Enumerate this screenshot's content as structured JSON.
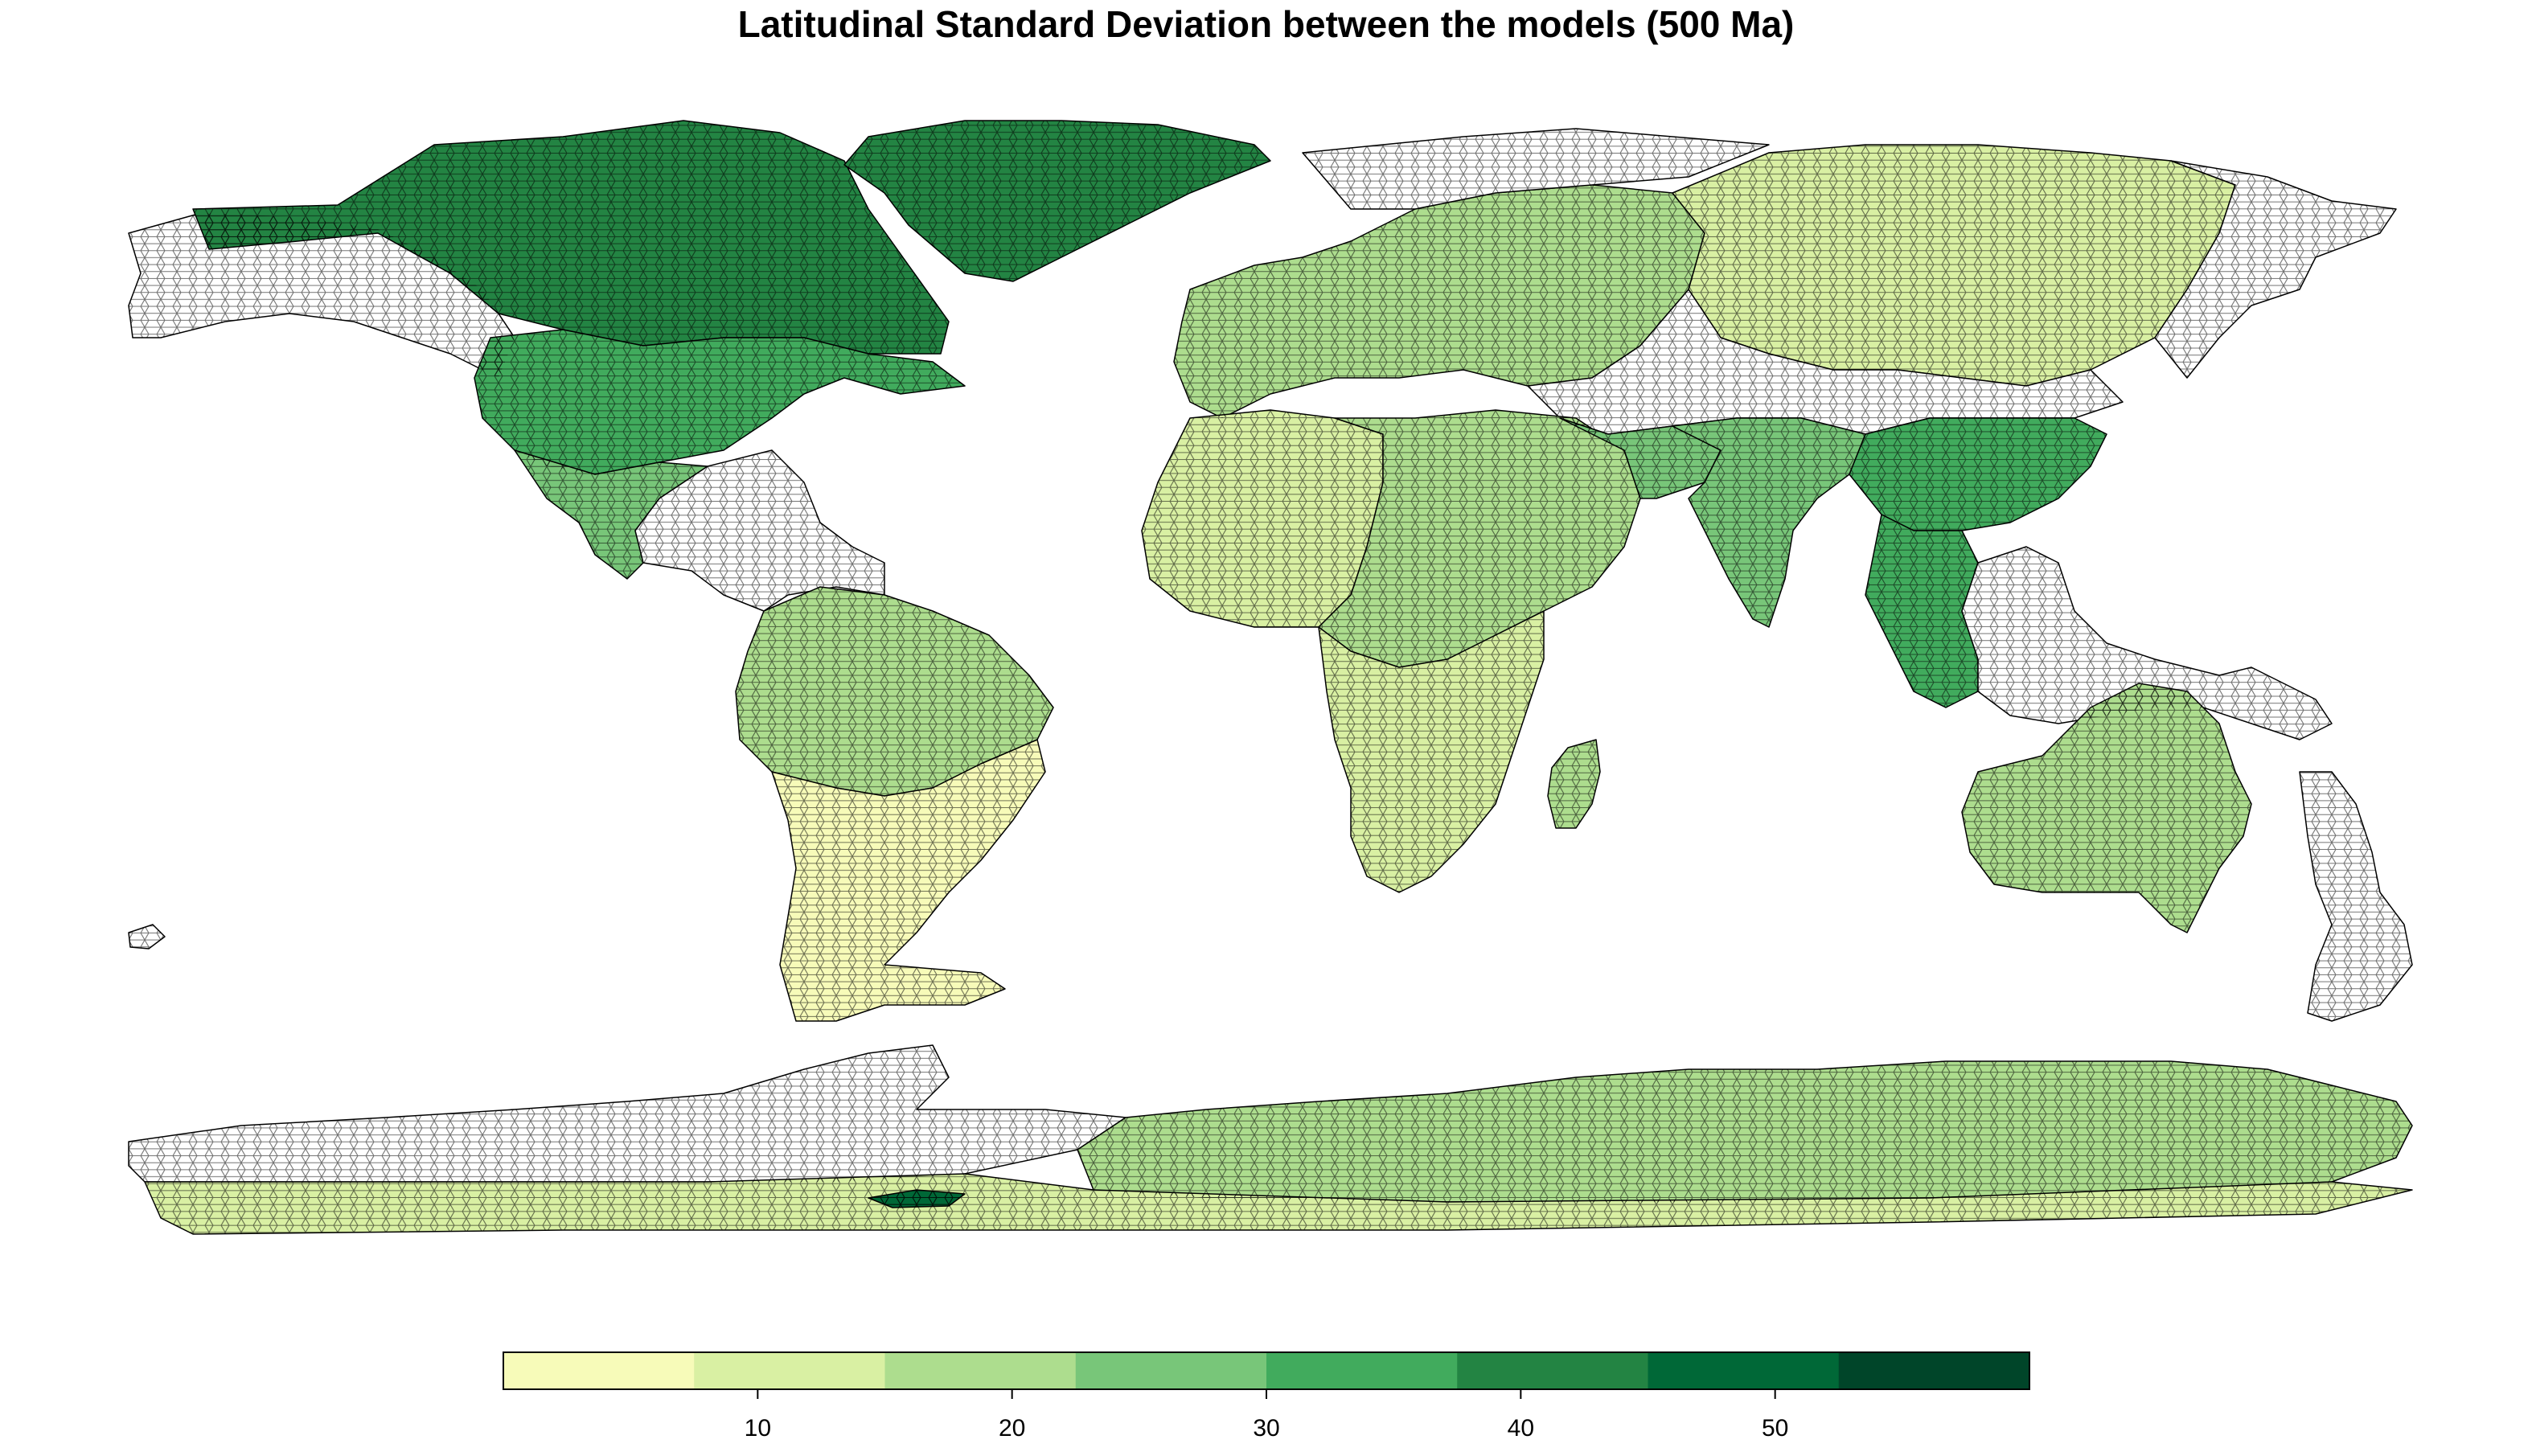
{
  "title": "Latitudinal Standard Deviation between the models (500 Ma)",
  "legend": {
    "colors": [
      "#f7fbb9",
      "#d9f0a3",
      "#addd8e",
      "#78c679",
      "#41ab5d",
      "#238443",
      "#006837",
      "#004529"
    ],
    "range": [
      0,
      60
    ],
    "ticks": [
      {
        "value": 10,
        "label": "10"
      },
      {
        "value": 20,
        "label": "20"
      },
      {
        "value": 30,
        "label": "30"
      },
      {
        "value": 40,
        "label": "40"
      },
      {
        "value": 50,
        "label": "50"
      }
    ]
  },
  "no_data_color": "#ffffff",
  "regions": [
    {
      "name": "north-america-north",
      "value": 40
    },
    {
      "name": "greenland",
      "value": 40
    },
    {
      "name": "north-america-central",
      "value": 33
    },
    {
      "name": "north-america-south",
      "value": 25
    },
    {
      "name": "alaska",
      "value": null
    },
    {
      "name": "central-america",
      "value": null
    },
    {
      "name": "south-america-north",
      "value": 20
    },
    {
      "name": "south-america-south",
      "value": 5
    },
    {
      "name": "europe",
      "value": 18
    },
    {
      "name": "siberia",
      "value": 12
    },
    {
      "name": "arctic-russia",
      "value": null
    },
    {
      "name": "central-asia",
      "value": null
    },
    {
      "name": "north-africa-west",
      "value": 8
    },
    {
      "name": "central-africa",
      "value": 20
    },
    {
      "name": "southern-africa",
      "value": 10
    },
    {
      "name": "madagascar",
      "value": 15
    },
    {
      "name": "middle-east",
      "value": 25
    },
    {
      "name": "india",
      "value": 25
    },
    {
      "name": "east-asia",
      "value": 33
    },
    {
      "name": "southeast-asia",
      "value": 33
    },
    {
      "name": "indonesia",
      "value": null
    },
    {
      "name": "australia",
      "value": 20
    },
    {
      "name": "new-zealand",
      "value": null
    },
    {
      "name": "antarctica-east",
      "value": 15
    },
    {
      "name": "antarctica-west",
      "value": null
    },
    {
      "name": "antarctic-base",
      "value": 10
    },
    {
      "name": "antarctica-hotspot",
      "value": 50
    }
  ]
}
